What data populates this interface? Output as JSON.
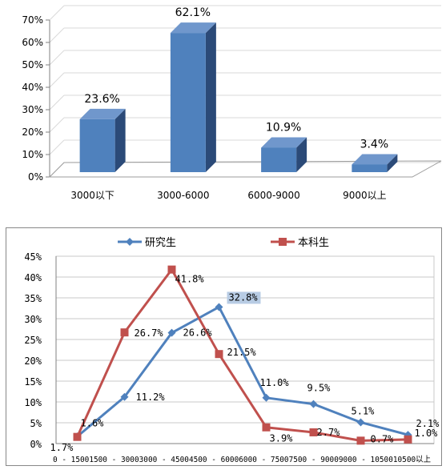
{
  "chart_data": [
    {
      "type": "bar",
      "categories": [
        "3000以下",
        "3000-6000",
        "6000-9000",
        "9000以上"
      ],
      "values": [
        23.6,
        62.1,
        10.9,
        3.4
      ],
      "value_labels": [
        "23.6%",
        "62.1%",
        "10.9%",
        "3.4%"
      ],
      "y_ticks": [
        "0%",
        "10%",
        "20%",
        "30%",
        "40%",
        "50%",
        "60%",
        "70%"
      ],
      "ylim": [
        0,
        70
      ],
      "colors": {
        "bar_front": "#4f81bd",
        "bar_side": "#2b4a78",
        "bar_top": "#7097cc"
      }
    },
    {
      "type": "line",
      "categories": [
        "0 - 1500",
        "1500 - 3000",
        "3000 - 4500",
        "4500 - 6000",
        "6000 - 7500",
        "7500 - 9000",
        "9000 - 10500",
        "10500以上"
      ],
      "x_tick_text": "0 - 15001500 - 30003000 - 45004500 - 60006000 - 75007500 - 90009000 - 1050010500以上",
      "series": [
        {
          "name": "研究生",
          "values": [
            1.7,
            11.2,
            26.6,
            32.8,
            11.0,
            9.5,
            5.1,
            2.1
          ],
          "labels": [
            "1.7%",
            "11.2%",
            "26.6%",
            "32.8%",
            "11.0%",
            "9.5%",
            "5.1%",
            "2.1%"
          ],
          "color": "#4f81bd",
          "marker": "diamond"
        },
        {
          "name": "本科生",
          "values": [
            1.6,
            26.7,
            41.8,
            21.5,
            3.9,
            2.7,
            0.7,
            1.0
          ],
          "labels": [
            "1.6%",
            "26.7%",
            "41.8%",
            "21.5%",
            "3.9%",
            "2.7%",
            "0.7%",
            "1.0%"
          ],
          "color": "#c0504d",
          "marker": "square"
        }
      ],
      "y_ticks": [
        "0%",
        "5%",
        "10%",
        "15%",
        "20%",
        "25%",
        "30%",
        "35%",
        "40%",
        "45%"
      ],
      "ylim": [
        0,
        45
      ],
      "highlight_label_bg": "#b8cce4",
      "legend_placement": "top"
    }
  ]
}
